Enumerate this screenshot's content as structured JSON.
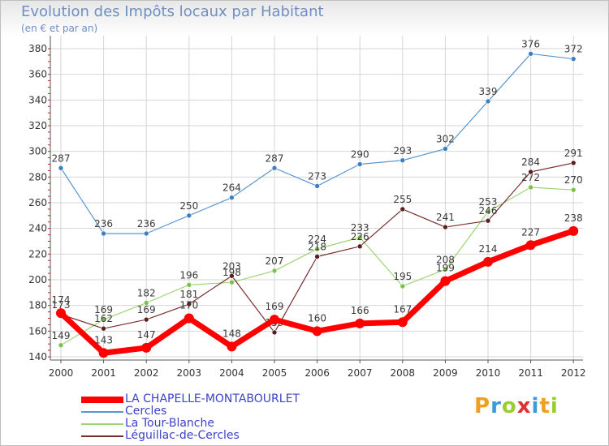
{
  "title": "Evolution des Impôts locaux par Habitant",
  "subtitle": "(en € et par an)",
  "logo": [
    "P",
    "r",
    "o",
    "x",
    "i",
    "t",
    "i"
  ],
  "logo_colors": [
    "#f0a020",
    "#3a9bd8",
    "#9acd32",
    "#e03030",
    "#3a9bd8",
    "#f0a020",
    "#9acd32"
  ],
  "chart_data": {
    "type": "line",
    "title": "Evolution des Impôts locaux par Habitant",
    "ylabel": "(en € et par an)",
    "xlabel": "",
    "ylim": [
      140,
      380
    ],
    "yticks": [
      140,
      160,
      180,
      200,
      220,
      240,
      260,
      280,
      300,
      320,
      340,
      360,
      380
    ],
    "categories": [
      "2000",
      "2001",
      "2002",
      "2003",
      "2004",
      "2005",
      "2006",
      "2007",
      "2008",
      "2009",
      "2010",
      "2011",
      "2012"
    ],
    "grid": true,
    "legend_position": "bottom-left",
    "series": [
      {
        "name": "Cercles",
        "color": "#5b97cf",
        "marker": "#3d7fc0",
        "width": 1.2,
        "values": [
          287,
          236,
          236,
          250,
          264,
          287,
          273,
          290,
          293,
          302,
          339,
          376,
          372
        ]
      },
      {
        "name": "La Tour-Blanche",
        "color": "#9ed474",
        "marker": "#7cc24a",
        "width": 1.2,
        "values": [
          149,
          169,
          182,
          196,
          198,
          207,
          224,
          233,
          195,
          208,
          253,
          272,
          270
        ]
      },
      {
        "name": "Léguillac-de-Cercles",
        "color": "#7a2e2e",
        "marker": "#5c1f1f",
        "width": 1.2,
        "values": [
          173,
          162,
          169,
          181,
          203,
          159,
          218,
          226,
          255,
          241,
          246,
          284,
          291
        ]
      },
      {
        "name": "LA CHAPELLE-MONTABOURLET",
        "color": "#ff0000",
        "marker": "#ff0000",
        "width": 7,
        "values": [
          174,
          143,
          147,
          170,
          148,
          169,
          160,
          166,
          167,
          199,
          214,
          227,
          238
        ]
      }
    ],
    "legend": [
      "LA CHAPELLE-MONTABOURLET",
      "Cercles",
      "La Tour-Blanche",
      "Léguillac-de-Cercles"
    ]
  }
}
